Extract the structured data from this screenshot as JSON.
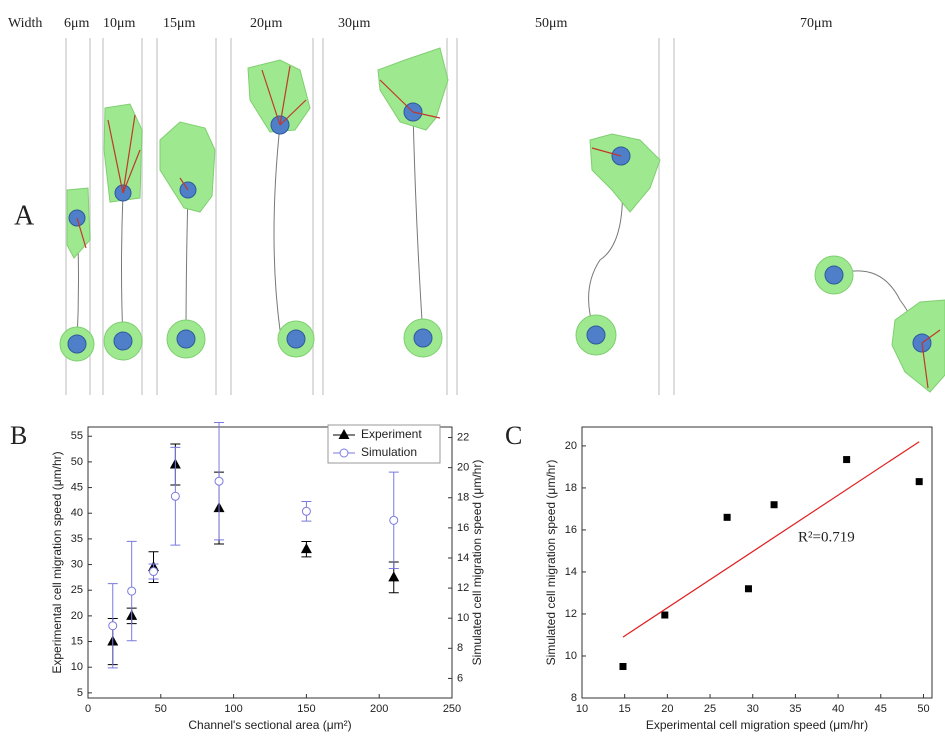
{
  "panel_a": {
    "label": "A",
    "width_label": "Width",
    "widths": [
      "6μm",
      "10μm",
      "15μm",
      "20μm",
      "30μm",
      "50μm",
      "70μm"
    ]
  },
  "chart_data": [
    {
      "type": "scatter",
      "panel_label": "B",
      "x_label": "Channel's sectional area (μm²)",
      "y_label": "Experimental cell migration speed (μm/hr)",
      "y2_label": "Simulated cell migration speed (μm/hr)",
      "x": [
        17,
        30,
        45,
        60,
        90,
        150,
        210
      ],
      "xlim": [
        0,
        250
      ],
      "xticks": [
        0,
        50,
        100,
        150,
        200,
        250
      ],
      "ylim": [
        4,
        56.8
      ],
      "yticks": [
        5,
        10,
        15,
        20,
        25,
        30,
        35,
        40,
        45,
        50,
        55
      ],
      "y2lim": [
        4.7,
        22.7
      ],
      "y2ticks": [
        6,
        8,
        10,
        12,
        14,
        16,
        18,
        20,
        22
      ],
      "legend": "top-right",
      "series": [
        {
          "name": "Experiment",
          "color": "#000000",
          "marker": "triangle",
          "values": [
            15,
            20,
            29.5,
            49.5,
            41,
            33,
            27.5
          ],
          "errors": [
            4.5,
            1.5,
            3,
            4,
            7,
            1.5,
            3
          ]
        },
        {
          "name": "Simulation",
          "color": "#7a7ae0",
          "marker": "circle",
          "axis": "y2",
          "values": [
            9.5,
            11.8,
            13.1,
            18.1,
            19.1,
            17.1,
            16.5
          ],
          "errors": [
            2.8,
            3.3,
            0.5,
            3.25,
            3.9,
            0.65,
            3.2
          ]
        }
      ]
    },
    {
      "type": "scatter",
      "panel_label": "C",
      "x_label": "Experimental cell migration speed (μm/hr)",
      "y_label": "Simulated cell migration speed (μm/hr)",
      "x": [
        14.8,
        19.7,
        27,
        29.5,
        32.5,
        41,
        49.5
      ],
      "xlim": [
        10,
        51
      ],
      "xticks": [
        10,
        15,
        20,
        25,
        30,
        35,
        40,
        45,
        50
      ],
      "ylim": [
        8,
        20.9
      ],
      "yticks": [
        8,
        10,
        12,
        14,
        16,
        18,
        20
      ],
      "series": [
        {
          "color": "#000000",
          "marker": "square",
          "values": [
            9.5,
            11.95,
            16.6,
            13.2,
            17.2,
            19.35,
            18.3
          ]
        }
      ],
      "trend": {
        "color": "#e02020",
        "x": [
          14.8,
          49.5
        ],
        "values": [
          10.9,
          20.2
        ]
      },
      "annotation": "R²=0.719"
    }
  ]
}
